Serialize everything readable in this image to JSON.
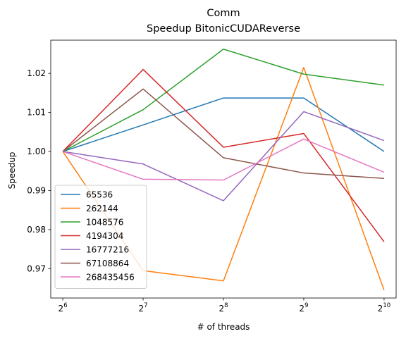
{
  "chart_data": {
    "type": "line",
    "title": "Comm",
    "subtitle": "Speedup BitonicCUDAReverse",
    "xlabel": "# of threads",
    "ylabel": "Speedup",
    "x": [
      6,
      7,
      8,
      9,
      10
    ],
    "x_tick_base": "2",
    "x_tick_exponents": [
      "6",
      "7",
      "8",
      "9",
      "10"
    ],
    "x_scale": "log2",
    "ylim": [
      0.9625,
      1.0285
    ],
    "y_ticks": [
      0.97,
      0.98,
      0.99,
      1.0,
      1.01,
      1.02
    ],
    "y_tick_labels": [
      "0.97",
      "0.98",
      "0.99",
      "1.00",
      "1.01",
      "1.02"
    ],
    "grid": false,
    "legend_position": "lower-left",
    "series": [
      {
        "name": "65536",
        "color": "#1f77b4",
        "values": [
          1.0,
          1.0068,
          1.0137,
          1.0137,
          1.0
        ]
      },
      {
        "name": "262144",
        "color": "#ff7f0e",
        "values": [
          1.0,
          0.9695,
          0.9669,
          1.0215,
          0.9645
        ]
      },
      {
        "name": "1048576",
        "color": "#2ca02c",
        "values": [
          1.0,
          1.0107,
          1.0262,
          1.0198,
          1.017
        ]
      },
      {
        "name": "4194304",
        "color": "#d62728",
        "values": [
          1.0,
          1.021,
          1.0011,
          1.0046,
          0.9769
        ]
      },
      {
        "name": "16777216",
        "color": "#9467bd",
        "values": [
          1.0,
          0.9968,
          0.9874,
          1.0102,
          1.0028
        ]
      },
      {
        "name": "67108864",
        "color": "#8c564b",
        "values": [
          1.0,
          1.016,
          0.9984,
          0.9945,
          0.9931
        ]
      },
      {
        "name": "268435456",
        "color": "#e377c2",
        "values": [
          1.0,
          0.9929,
          0.9927,
          1.0032,
          0.9947
        ]
      }
    ]
  }
}
